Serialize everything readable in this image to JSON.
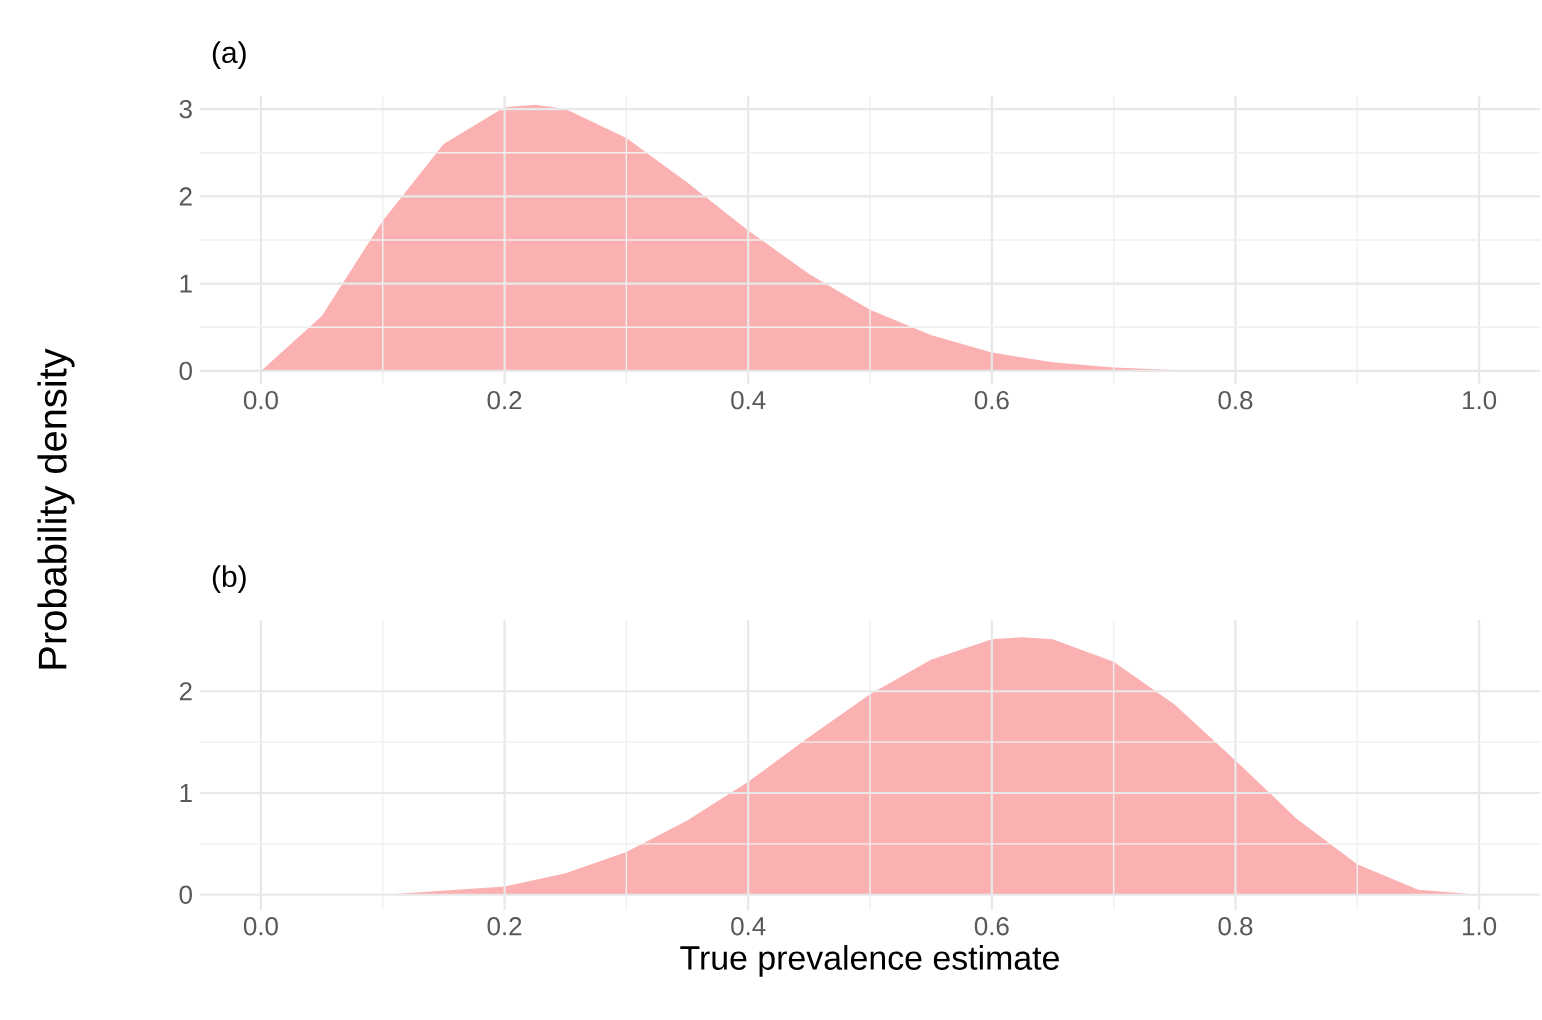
{
  "chart_data": [
    {
      "type": "area",
      "title": "(a)",
      "ylabel": "Probability density",
      "color": "#fbb1b1",
      "grid": true,
      "x": [
        0,
        0.05,
        0.1,
        0.15,
        0.2,
        0.225,
        0.25,
        0.3,
        0.35,
        0.4,
        0.45,
        0.5,
        0.55,
        0.6,
        0.65,
        0.7,
        0.75,
        0.8,
        0.9,
        1.0
      ],
      "values": [
        0,
        0.63,
        1.72,
        2.6,
        3.02,
        3.05,
        3.0,
        2.67,
        2.16,
        1.61,
        1.11,
        0.7,
        0.41,
        0.21,
        0.1,
        0.04,
        0.01,
        0,
        0,
        0
      ],
      "xlim": [
        -0.05,
        1.05
      ],
      "ylim": [
        -0.15,
        3.15
      ],
      "xticks": [
        {
          "value": 0,
          "label": "0.0"
        },
        {
          "value": 0.2,
          "label": "0.2"
        },
        {
          "value": 0.4,
          "label": "0.4"
        },
        {
          "value": 0.6,
          "label": "0.6"
        },
        {
          "value": 0.8,
          "label": "0.8"
        },
        {
          "value": 1,
          "label": "1.0"
        }
      ],
      "yticks": [
        0,
        1,
        2,
        3
      ]
    },
    {
      "type": "area",
      "title": "(b)",
      "xlabel": "True prevalence estimate",
      "color": "#fbb1b1",
      "grid": true,
      "x": [
        0,
        0.1,
        0.2,
        0.25,
        0.3,
        0.35,
        0.4,
        0.45,
        0.5,
        0.55,
        0.6,
        0.625,
        0.65,
        0.7,
        0.75,
        0.8,
        0.85,
        0.9,
        0.95,
        1.0
      ],
      "values": [
        0,
        0,
        0.08,
        0.21,
        0.42,
        0.73,
        1.11,
        1.55,
        1.97,
        2.31,
        2.51,
        2.53,
        2.51,
        2.29,
        1.87,
        1.32,
        0.75,
        0.3,
        0.05,
        0
      ],
      "xlim": [
        -0.05,
        1.05
      ],
      "ylim": [
        -0.15,
        2.7
      ],
      "xticks": [
        {
          "value": 0,
          "label": "0.0"
        },
        {
          "value": 0.2,
          "label": "0.2"
        },
        {
          "value": 0.4,
          "label": "0.4"
        },
        {
          "value": 0.6,
          "label": "0.6"
        },
        {
          "value": 0.8,
          "label": "0.8"
        },
        {
          "value": 1,
          "label": "1.0"
        }
      ],
      "yticks": [
        0,
        1,
        2
      ]
    }
  ]
}
